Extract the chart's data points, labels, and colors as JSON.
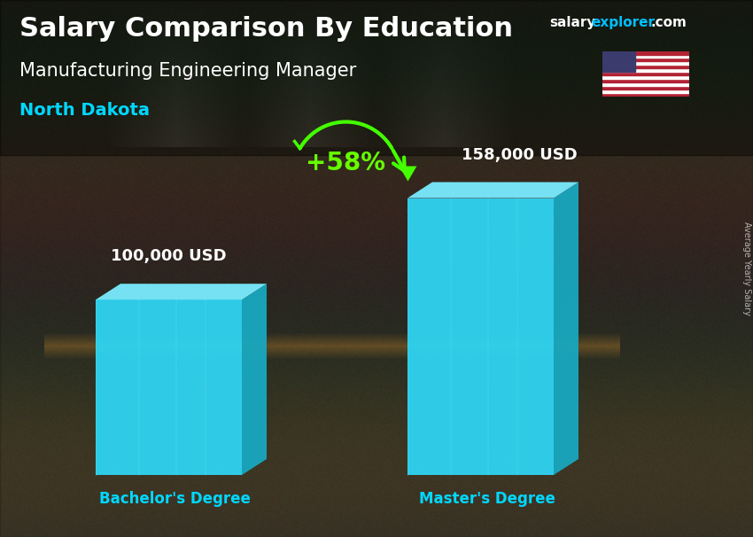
{
  "title_main": "Salary Comparison By Education",
  "title_sub": "Manufacturing Engineering Manager",
  "title_location": "North Dakota",
  "categories": [
    "Bachelor's Degree",
    "Master's Degree"
  ],
  "values": [
    100000,
    158000
  ],
  "value_labels": [
    "100,000 USD",
    "158,000 USD"
  ],
  "pct_change": "+58%",
  "bar_front_color": "#30D5F5",
  "bar_side_color": "#10A8C8",
  "bar_top_color": "#70E8FF",
  "text_color_white": "#FFFFFF",
  "text_color_cyan": "#00D8FF",
  "text_color_green": "#66FF00",
  "arrow_color": "#44FF00",
  "watermark_salary": "salary",
  "watermark_explorer": "explorer",
  "watermark_com": ".com",
  "watermark_color_white": "#FFFFFF",
  "watermark_color_cyan": "#00BFFF",
  "side_label": "Average Yearly Salary",
  "bg_colors": [
    "#5a5040",
    "#706050",
    "#504535",
    "#403830",
    "#5a5040"
  ],
  "overlay_color": "#1a1408",
  "overlay_alpha": 0.45
}
